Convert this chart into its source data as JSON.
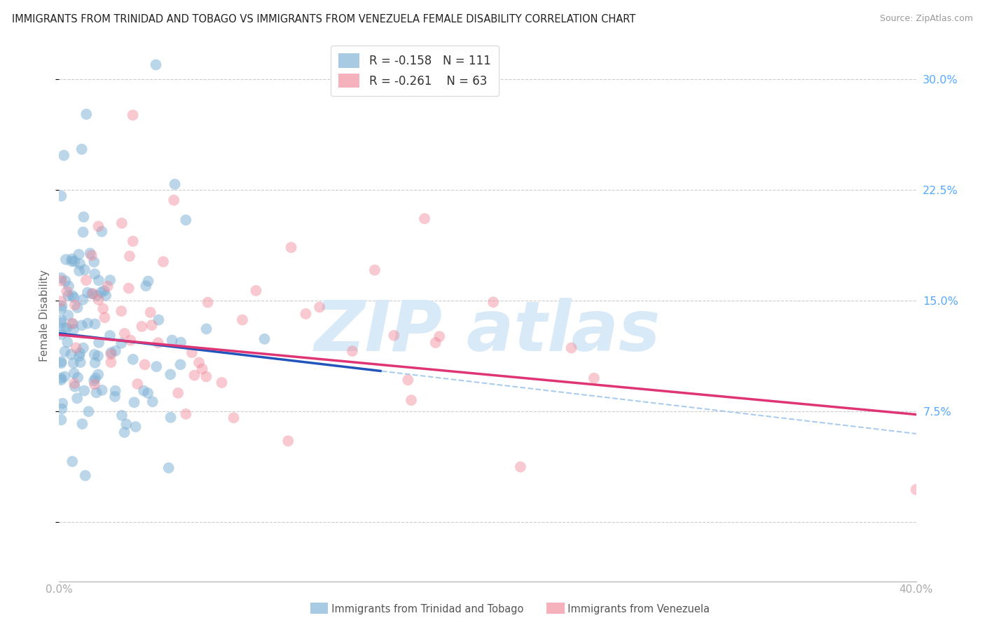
{
  "title": "IMMIGRANTS FROM TRINIDAD AND TOBAGO VS IMMIGRANTS FROM VENEZUELA FEMALE DISABILITY CORRELATION CHART",
  "source": "Source: ZipAtlas.com",
  "ylabel": "Female Disability",
  "legend1_label": "Immigrants from Trinidad and Tobago",
  "legend2_label": "Immigrants from Venezuela",
  "R1": -0.158,
  "N1": 111,
  "R2": -0.261,
  "N2": 63,
  "blue_color": "#7AAFD4",
  "pink_color": "#F08898",
  "blue_line_color": "#2255BB",
  "pink_line_color": "#E03575",
  "dashed_line_color": "#AACCEE",
  "watermark_color": "#D8EAF8",
  "background_color": "#FFFFFF",
  "xmin": 0.0,
  "xmax": 0.4,
  "ymin": -0.04,
  "ymax": 0.32,
  "ytick_vals": [
    0.0,
    0.075,
    0.15,
    0.225,
    0.3
  ],
  "ytick_labels": [
    "",
    "7.5%",
    "15.0%",
    "22.5%",
    "30.0%"
  ],
  "seed": 12
}
